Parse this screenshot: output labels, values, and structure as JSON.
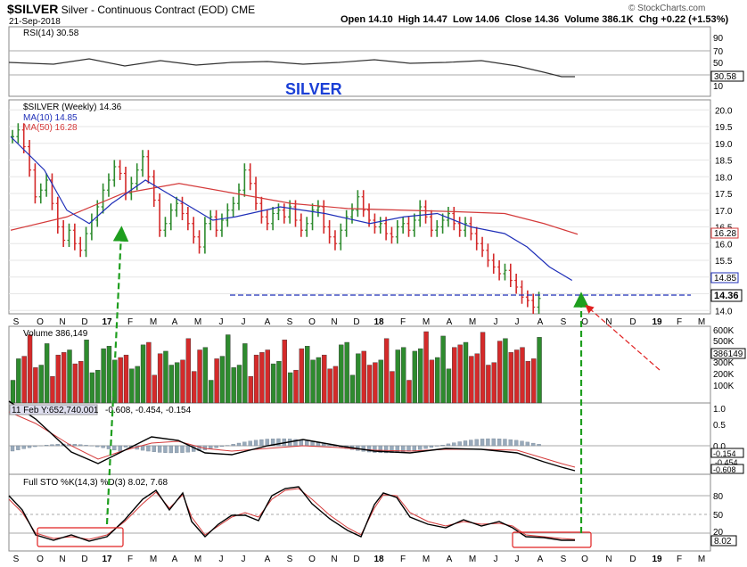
{
  "header": {
    "symbol": "$SILVER",
    "name": "Silver - Continuous Contract (EOD)",
    "exchange": "CME",
    "date": "21-Sep-2018",
    "watermark": "© StockCharts.com",
    "ohlc_text": "Open 14.10  High 14.47  Low 14.06  Close 14.36  Volume 386.1K  Chg +0.22 (+1.53%)"
  },
  "annotation": {
    "silver_label": "SILVER",
    "tooltip": "11 Feb Y:652,740.001"
  },
  "rsi": {
    "label": "RSI(14) 30.58",
    "value_badge": "30.58",
    "ticks": [
      "90",
      "70",
      "50",
      "30",
      "10"
    ]
  },
  "price": {
    "legend_title": "$SILVER (Weekly) 14.36",
    "ma10_label": "MA(10) 14.85",
    "ma50_label": "MA(50) 16.28",
    "ticks": [
      "20.0",
      "19.5",
      "19.0",
      "18.5",
      "18.0",
      "17.5",
      "17.0",
      "16.5",
      "16.0",
      "15.5",
      "15.0",
      "14.5",
      "14.0"
    ],
    "badge_ma50": "16.28",
    "badge_ma10": "14.85",
    "badge_close": "14.36"
  },
  "volume": {
    "label": "Volume 386,149",
    "badge": "386149",
    "ticks": [
      "600K",
      "500K",
      "400K",
      "300K",
      "200K",
      "100K"
    ]
  },
  "macd": {
    "text": "-0.608, -0.454, -0.154",
    "badges": [
      "-0.154",
      "-0.454",
      "-0.608"
    ],
    "ticks": [
      "1.0",
      "0.5",
      "0.0",
      "-0.5"
    ]
  },
  "sto": {
    "label": "Full STO %K(14,3) %D(3) 8.02, 7.68",
    "badge": "8.02",
    "ticks": [
      "80",
      "50",
      "20"
    ]
  },
  "xaxis": [
    "S",
    "O",
    "N",
    "D",
    "17",
    "F",
    "M",
    "A",
    "M",
    "J",
    "J",
    "A",
    "S",
    "O",
    "N",
    "D",
    "18",
    "F",
    "M",
    "A",
    "M",
    "J",
    "J",
    "A",
    "S",
    "O",
    "N",
    "D",
    "19",
    "F",
    "M"
  ],
  "colors": {
    "up": "#2e8b2e",
    "down": "#d42a2a",
    "ma10": "#1f2fb8",
    "ma50": "#d43a3a",
    "silver_text": "#1a3fd6",
    "green_arrow": "#1e9e1e"
  },
  "chart_data": {
    "type": "line",
    "title": "$SILVER (Weekly) 14.36",
    "x_range": [
      "Sep 2016",
      "Mar 2019"
    ],
    "ylim": [
      13.9,
      20.3
    ],
    "support_line": 14.4,
    "series": [
      {
        "name": "MA(10)",
        "points": [
          [
            0,
            19.2
          ],
          [
            6,
            18.2
          ],
          [
            10,
            17.0
          ],
          [
            14,
            16.6
          ],
          [
            18,
            17.2
          ],
          [
            24,
            17.9
          ],
          [
            30,
            17.3
          ],
          [
            36,
            16.7
          ],
          [
            40,
            16.8
          ],
          [
            48,
            17.1
          ],
          [
            56,
            16.9
          ],
          [
            64,
            16.6
          ],
          [
            70,
            16.8
          ],
          [
            76,
            16.9
          ],
          [
            82,
            16.5
          ],
          [
            88,
            16.3
          ],
          [
            92,
            15.9
          ],
          [
            96,
            15.3
          ],
          [
            100,
            14.9
          ]
        ]
      },
      {
        "name": "MA(50)",
        "points": [
          [
            0,
            16.4
          ],
          [
            10,
            16.8
          ],
          [
            20,
            17.5
          ],
          [
            30,
            17.8
          ],
          [
            40,
            17.5
          ],
          [
            50,
            17.2
          ],
          [
            60,
            17.05
          ],
          [
            70,
            17.0
          ],
          [
            80,
            16.95
          ],
          [
            88,
            16.9
          ],
          [
            95,
            16.6
          ],
          [
            101,
            16.28
          ]
        ]
      }
    ],
    "last_close": 14.36
  }
}
